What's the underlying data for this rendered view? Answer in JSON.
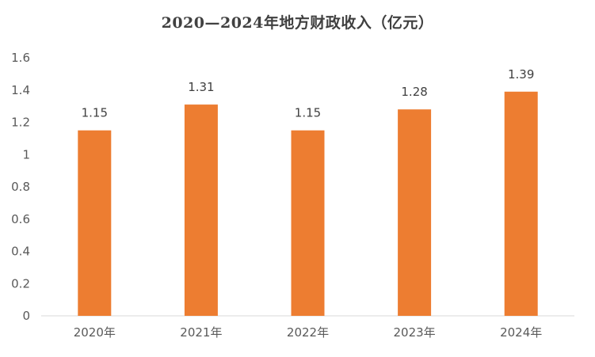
{
  "chart_data": {
    "type": "bar",
    "title": "2020—2024年地方财政收入（亿元）",
    "categories": [
      "2020年",
      "2021年",
      "2022年",
      "2023年",
      "2024年"
    ],
    "values": [
      1.15,
      1.31,
      1.15,
      1.28,
      1.39
    ],
    "data_labels": [
      "1.15",
      "1.31",
      "1.15",
      "1.28",
      "1.39"
    ],
    "y_ticks": [
      "0",
      "0.2",
      "0.4",
      "0.6",
      "0.8",
      "1",
      "1.2",
      "1.4",
      "1.6"
    ],
    "ylim": [
      0,
      1.6
    ],
    "xlabel": "",
    "ylabel": "",
    "grid": false,
    "legend": "none",
    "colors": {
      "bar": "#ED7D31",
      "axis": "#D9D9D9",
      "text": "#595959"
    }
  }
}
